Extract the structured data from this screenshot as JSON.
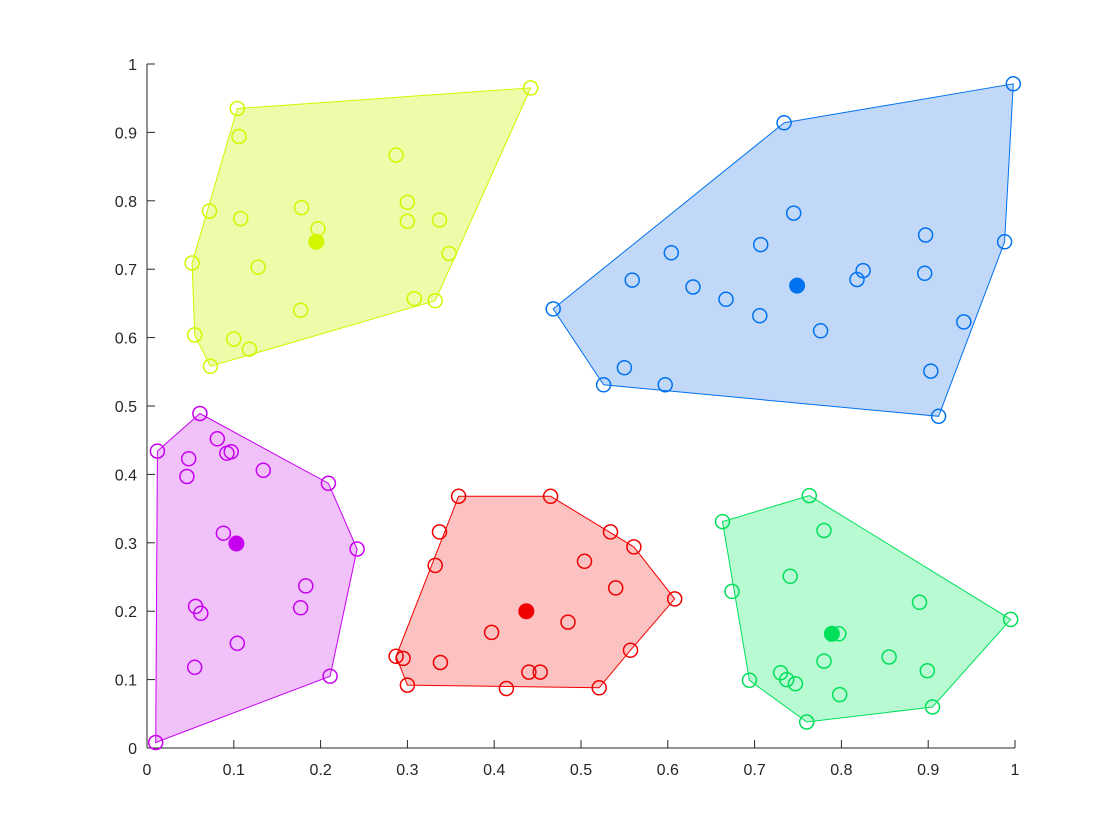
{
  "chart_data": {
    "type": "scatter",
    "xlim": [
      0,
      1
    ],
    "ylim": [
      0,
      1
    ],
    "x_ticks": [
      0,
      0.1,
      0.2,
      0.3,
      0.4,
      0.5,
      0.6,
      0.7,
      0.8,
      0.9,
      1
    ],
    "y_ticks": [
      0,
      0.1,
      0.2,
      0.3,
      0.4,
      0.5,
      0.6,
      0.7,
      0.8,
      0.9,
      1
    ],
    "x_tick_labels": [
      "0",
      "0.1",
      "0.2",
      "0.3",
      "0.4",
      "0.5",
      "0.6",
      "0.7",
      "0.8",
      "0.9",
      "1"
    ],
    "y_tick_labels": [
      "0",
      "0.1",
      "0.2",
      "0.3",
      "0.4",
      "0.5",
      "0.6",
      "0.7",
      "0.8",
      "0.9",
      "1"
    ],
    "grid": false,
    "marker": "open-circle",
    "title": "",
    "xlabel": "",
    "ylabel": "",
    "series": [
      {
        "color": "#D4F500",
        "fill": "#ECFCA8",
        "centroid": [
          0.195,
          0.74
        ],
        "hull": [
          [
            0.104,
            0.935
          ],
          [
            0.442,
            0.965
          ],
          [
            0.332,
            0.654
          ],
          [
            0.073,
            0.558
          ],
          [
            0.055,
            0.604
          ],
          [
            0.052,
            0.709
          ]
        ],
        "points": [
          [
            0.104,
            0.935
          ],
          [
            0.442,
            0.965
          ],
          [
            0.106,
            0.894
          ],
          [
            0.287,
            0.867
          ],
          [
            0.072,
            0.785
          ],
          [
            0.178,
            0.79
          ],
          [
            0.3,
            0.798
          ],
          [
            0.108,
            0.774
          ],
          [
            0.3,
            0.77
          ],
          [
            0.337,
            0.772
          ],
          [
            0.197,
            0.759
          ],
          [
            0.348,
            0.723
          ],
          [
            0.052,
            0.709
          ],
          [
            0.128,
            0.703
          ],
          [
            0.308,
            0.657
          ],
          [
            0.332,
            0.654
          ],
          [
            0.177,
            0.64
          ],
          [
            0.055,
            0.604
          ],
          [
            0.1,
            0.598
          ],
          [
            0.118,
            0.583
          ],
          [
            0.073,
            0.558
          ]
        ]
      },
      {
        "color": "#0072F0",
        "fill": "#C1D8F8",
        "centroid": [
          0.749,
          0.676
        ],
        "hull": [
          [
            0.734,
            0.914
          ],
          [
            0.998,
            0.971
          ],
          [
            0.988,
            0.74
          ],
          [
            0.912,
            0.485
          ],
          [
            0.526,
            0.531
          ],
          [
            0.468,
            0.642
          ]
        ],
        "points": [
          [
            0.998,
            0.971
          ],
          [
            0.734,
            0.914
          ],
          [
            0.745,
            0.782
          ],
          [
            0.897,
            0.75
          ],
          [
            0.988,
            0.74
          ],
          [
            0.707,
            0.736
          ],
          [
            0.604,
            0.724
          ],
          [
            0.825,
            0.698
          ],
          [
            0.896,
            0.694
          ],
          [
            0.818,
            0.685
          ],
          [
            0.559,
            0.684
          ],
          [
            0.629,
            0.674
          ],
          [
            0.667,
            0.656
          ],
          [
            0.468,
            0.642
          ],
          [
            0.941,
            0.623
          ],
          [
            0.706,
            0.632
          ],
          [
            0.776,
            0.61
          ],
          [
            0.55,
            0.556
          ],
          [
            0.903,
            0.551
          ],
          [
            0.526,
            0.531
          ],
          [
            0.597,
            0.531
          ],
          [
            0.912,
            0.485
          ]
        ]
      },
      {
        "color": "#C800F0",
        "fill": "#F0C2F9",
        "centroid": [
          0.103,
          0.299
        ],
        "hull": [
          [
            0.061,
            0.489
          ],
          [
            0.209,
            0.387
          ],
          [
            0.242,
            0.291
          ],
          [
            0.211,
            0.105
          ],
          [
            0.01,
            0.008
          ],
          [
            0.012,
            0.434
          ]
        ],
        "points": [
          [
            0.061,
            0.489
          ],
          [
            0.081,
            0.452
          ],
          [
            0.012,
            0.434
          ],
          [
            0.097,
            0.433
          ],
          [
            0.092,
            0.431
          ],
          [
            0.048,
            0.423
          ],
          [
            0.134,
            0.406
          ],
          [
            0.046,
            0.397
          ],
          [
            0.209,
            0.387
          ],
          [
            0.088,
            0.314
          ],
          [
            0.242,
            0.291
          ],
          [
            0.183,
            0.237
          ],
          [
            0.056,
            0.207
          ],
          [
            0.177,
            0.205
          ],
          [
            0.062,
            0.197
          ],
          [
            0.104,
            0.153
          ],
          [
            0.055,
            0.118
          ],
          [
            0.211,
            0.105
          ],
          [
            0.01,
            0.008
          ]
        ]
      },
      {
        "color": "#F00000",
        "fill": "#FCC1C1",
        "centroid": [
          0.437,
          0.2
        ],
        "hull": [
          [
            0.359,
            0.368
          ],
          [
            0.465,
            0.368
          ],
          [
            0.561,
            0.294
          ],
          [
            0.608,
            0.218
          ],
          [
            0.557,
            0.143
          ],
          [
            0.521,
            0.088
          ],
          [
            0.3,
            0.092
          ],
          [
            0.287,
            0.134
          ]
        ],
        "points": [
          [
            0.359,
            0.368
          ],
          [
            0.465,
            0.368
          ],
          [
            0.337,
            0.316
          ],
          [
            0.534,
            0.316
          ],
          [
            0.561,
            0.294
          ],
          [
            0.504,
            0.273
          ],
          [
            0.332,
            0.267
          ],
          [
            0.54,
            0.234
          ],
          [
            0.608,
            0.218
          ],
          [
            0.485,
            0.184
          ],
          [
            0.397,
            0.169
          ],
          [
            0.557,
            0.143
          ],
          [
            0.287,
            0.134
          ],
          [
            0.295,
            0.131
          ],
          [
            0.338,
            0.125
          ],
          [
            0.44,
            0.111
          ],
          [
            0.453,
            0.111
          ],
          [
            0.3,
            0.092
          ],
          [
            0.414,
            0.087
          ],
          [
            0.521,
            0.088
          ]
        ]
      },
      {
        "color": "#00E05A",
        "fill": "#B8FBD2",
        "centroid": [
          0.789,
          0.167
        ],
        "hull": [
          [
            0.763,
            0.369
          ],
          [
            0.995,
            0.188
          ],
          [
            0.905,
            0.06
          ],
          [
            0.76,
            0.038
          ],
          [
            0.694,
            0.099
          ],
          [
            0.663,
            0.331
          ]
        ],
        "points": [
          [
            0.763,
            0.369
          ],
          [
            0.663,
            0.331
          ],
          [
            0.78,
            0.318
          ],
          [
            0.741,
            0.251
          ],
          [
            0.674,
            0.229
          ],
          [
            0.89,
            0.213
          ],
          [
            0.995,
            0.188
          ],
          [
            0.797,
            0.167
          ],
          [
            0.855,
            0.133
          ],
          [
            0.78,
            0.127
          ],
          [
            0.899,
            0.113
          ],
          [
            0.73,
            0.11
          ],
          [
            0.737,
            0.1
          ],
          [
            0.747,
            0.094
          ],
          [
            0.694,
            0.099
          ],
          [
            0.798,
            0.078
          ],
          [
            0.905,
            0.06
          ],
          [
            0.76,
            0.038
          ]
        ]
      }
    ]
  }
}
